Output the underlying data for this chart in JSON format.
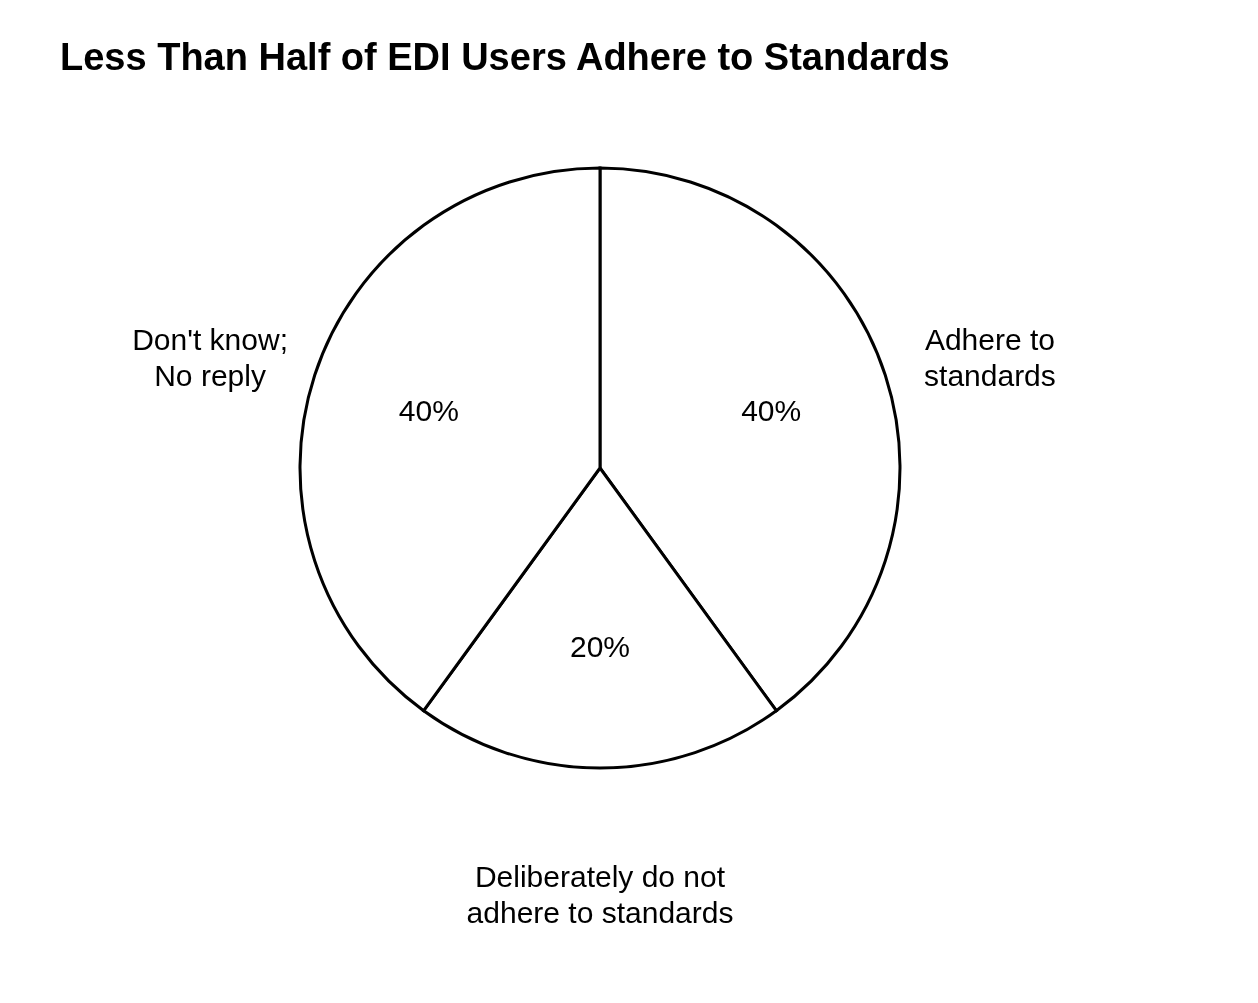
{
  "chart_data": {
    "type": "pie",
    "title": "Less Than Half of EDI Users Adhere to Standards",
    "categories": [
      "Adhere to standards",
      "Deliberately do not adhere to standards",
      "Don't know; No reply"
    ],
    "values": [
      40,
      20,
      40
    ],
    "colors": [
      "#ffffff",
      "#ffffff",
      "#ffffff"
    ],
    "value_labels": [
      "40%",
      "20%",
      "40%"
    ],
    "legend": false
  }
}
